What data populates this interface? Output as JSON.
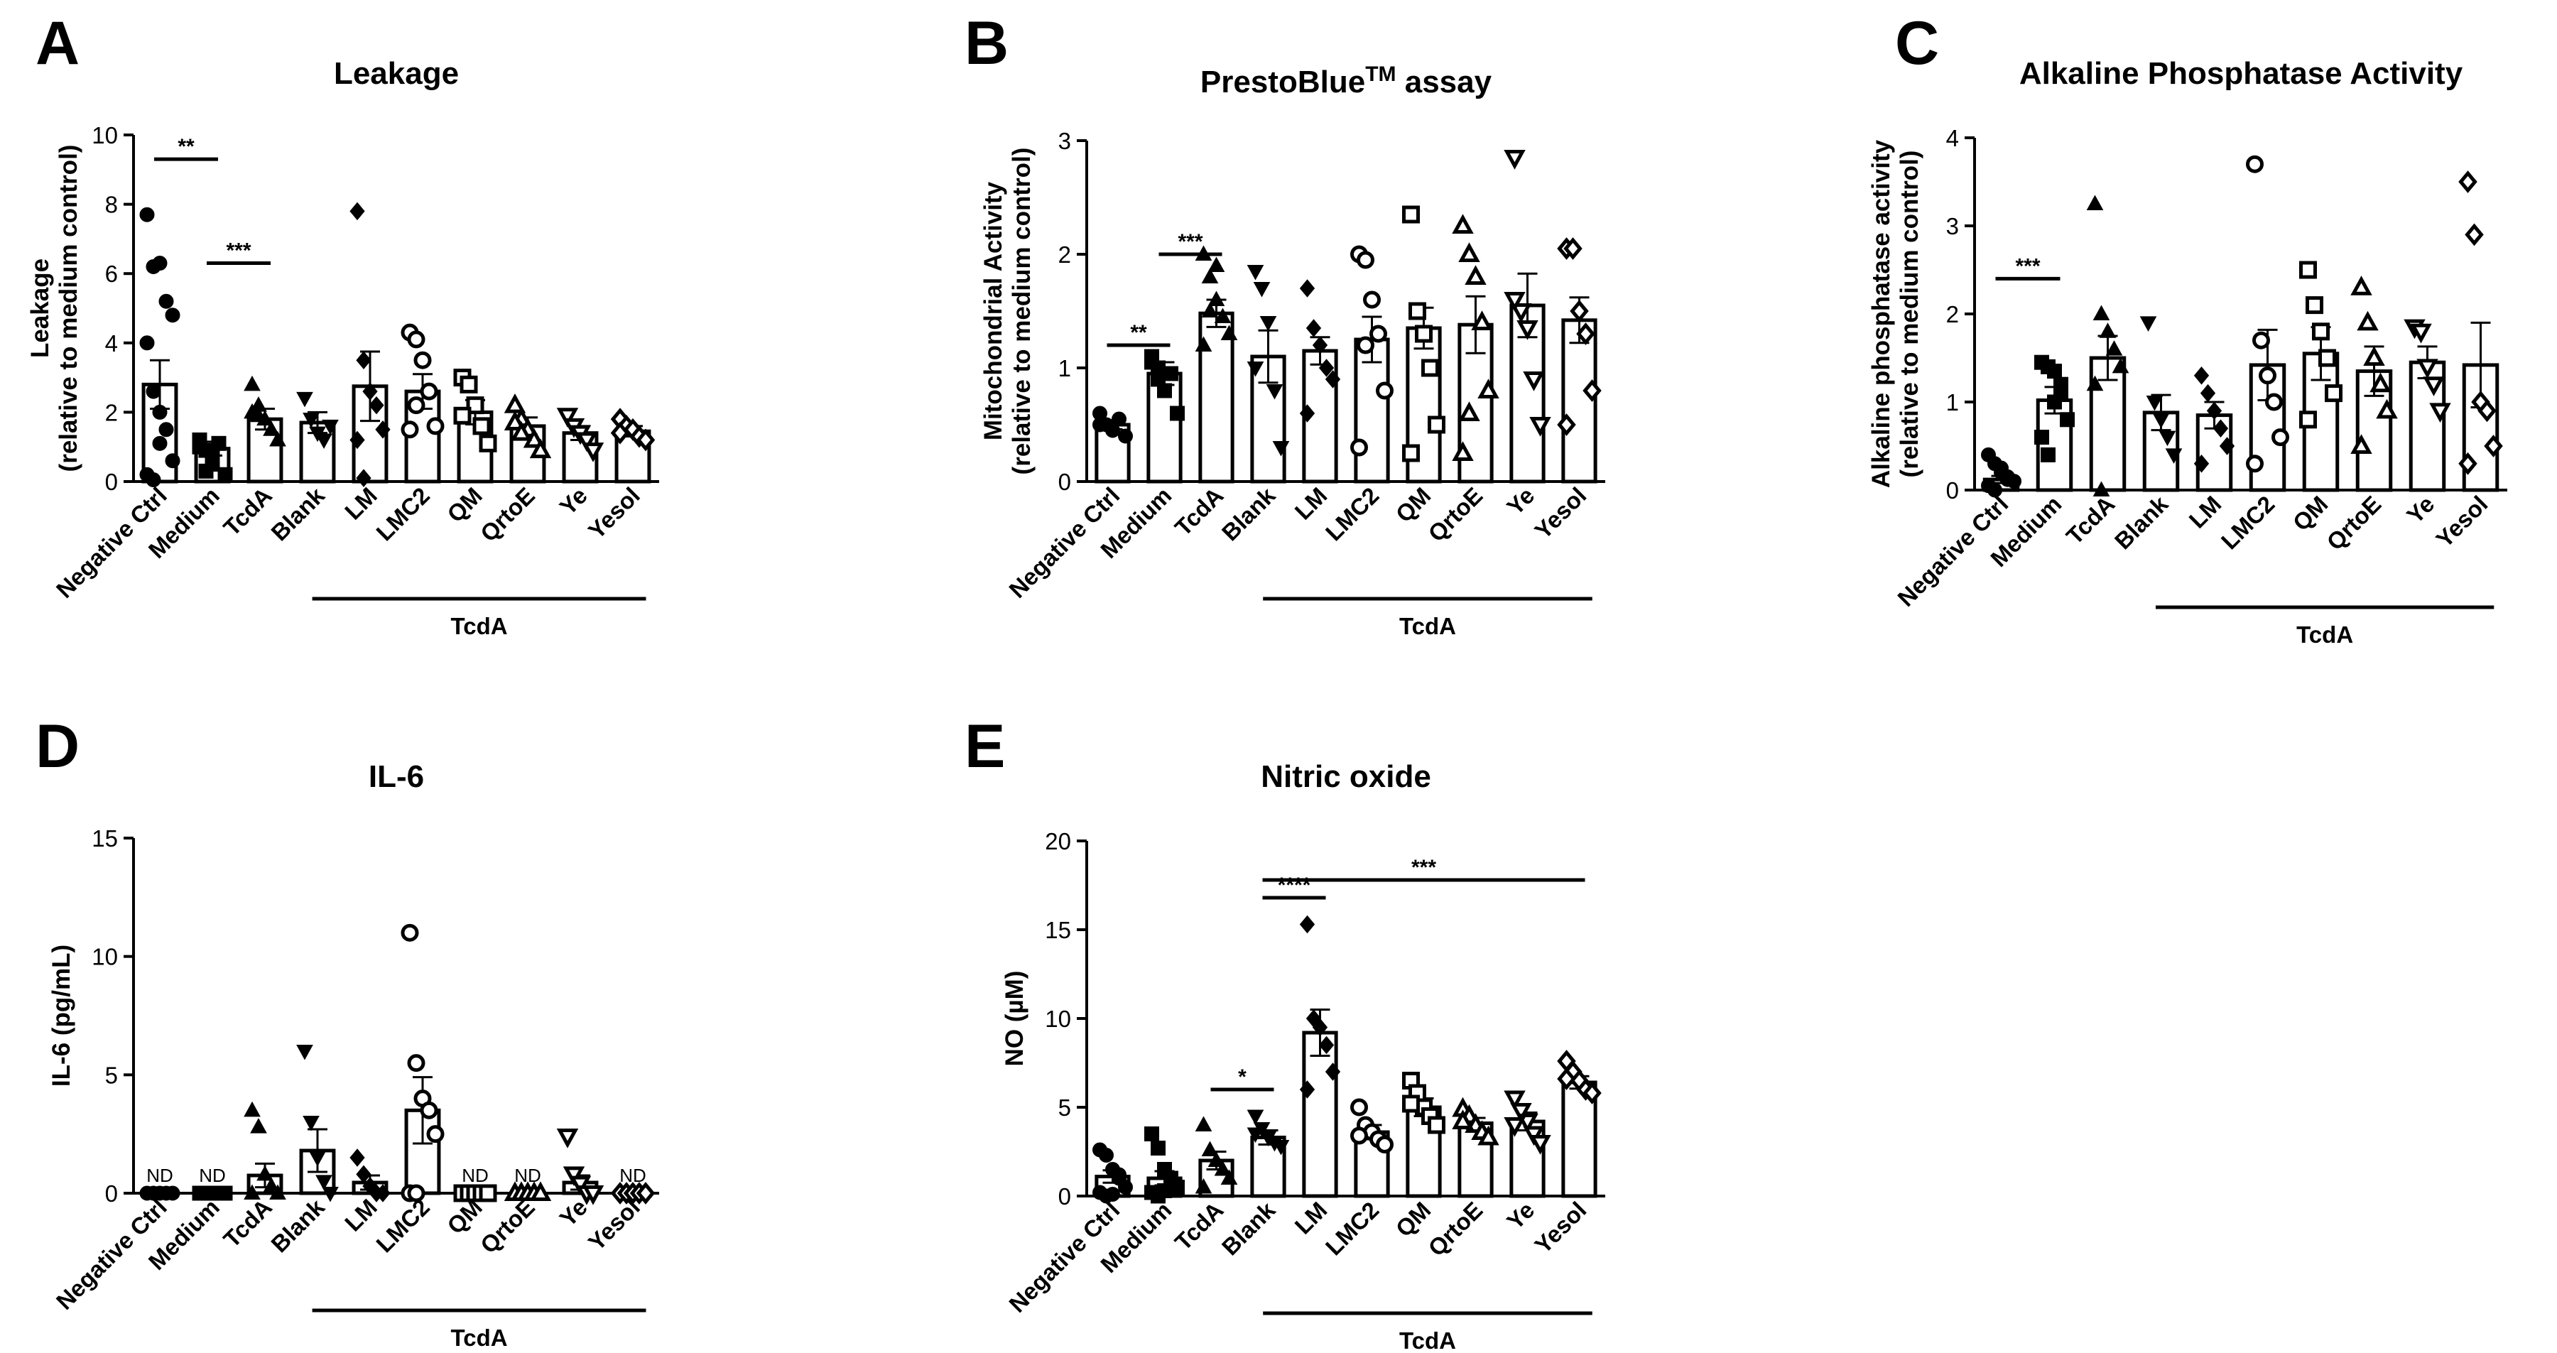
{
  "chart_data": [
    {
      "panel": "A",
      "type": "bar",
      "title": "Leakage",
      "ylabel": [
        "Leakage",
        "(relative to medium control)"
      ],
      "ylim": [
        0,
        10
      ],
      "yticks": [
        0,
        2,
        4,
        6,
        8,
        10
      ],
      "categories": [
        "Negative Ctrl",
        "Medium",
        "TcdA",
        "Blank",
        "LM",
        "LMC2",
        "QM",
        "QrtoE",
        "Ye",
        "Yesol"
      ],
      "markers": [
        "circle",
        "square",
        "triangle",
        "triangle-down",
        "diamond",
        "circle-open",
        "square-open",
        "triangle-open",
        "triangle-down-open",
        "diamond-open"
      ],
      "values": [
        2.8,
        0.95,
        1.8,
        1.7,
        2.75,
        2.6,
        2.0,
        1.6,
        1.4,
        1.45
      ],
      "errors": [
        0.7,
        0.2,
        0.3,
        0.3,
        1.0,
        0.5,
        0.35,
        0.25,
        0.2,
        0.15
      ],
      "points": [
        [
          7.7,
          6.2,
          6.3,
          5.2,
          4.8,
          4.0,
          2.6,
          2.0,
          1.5,
          0.6,
          0.2,
          0.05,
          1.1
        ],
        [
          1.0,
          0.9,
          0.5,
          1.1,
          0.2,
          1.2,
          0.3,
          0.8
        ],
        [
          2.8,
          2.2,
          1.8,
          1.5,
          1.2,
          2.0,
          1.9
        ],
        [
          2.4,
          1.8,
          1.4,
          1.2,
          1.6
        ],
        [
          7.8,
          3.5,
          2.6,
          2.2,
          1.5,
          1.2,
          0.1
        ],
        [
          4.3,
          4.1,
          3.5,
          2.6,
          1.6,
          1.5,
          2.2
        ],
        [
          3.0,
          2.8,
          2.2,
          1.6,
          1.1,
          1.9
        ],
        [
          2.2,
          1.8,
          1.5,
          1.2,
          0.9,
          1.7,
          1.4
        ],
        [
          1.9,
          1.6,
          1.4,
          1.2,
          0.9
        ],
        [
          1.8,
          1.6,
          1.5,
          1.3,
          1.2,
          1.4
        ]
      ],
      "significance": [
        {
          "from": 0,
          "to": 1,
          "label": "**",
          "y": 9.3
        },
        {
          "from": 1,
          "to": 2,
          "label": "***",
          "y": 6.3
        }
      ],
      "group": {
        "label": "TcdA",
        "from": 3,
        "to": 9
      }
    },
    {
      "panel": "B",
      "type": "bar",
      "title": "PrestoBlue",
      "title_sup": "TM",
      "title_after": " assay",
      "ylabel": [
        "Mitochondrial Activity",
        "(relative to medium control)"
      ],
      "ylim": [
        0,
        3
      ],
      "yticks": [
        0,
        1,
        2,
        3
      ],
      "categories": [
        "Negative Ctrl",
        "Medium",
        "TcdA",
        "Blank",
        "LM",
        "LMC2",
        "QM",
        "QrtoE",
        "Ye",
        "Yesol"
      ],
      "markers": [
        "circle",
        "square",
        "triangle",
        "triangle-down",
        "diamond",
        "circle-open",
        "square-open",
        "triangle-open",
        "triangle-down-open",
        "diamond-open"
      ],
      "values": [
        0.5,
        0.95,
        1.48,
        1.1,
        1.15,
        1.25,
        1.35,
        1.38,
        1.55,
        1.42
      ],
      "errors": [
        0.04,
        0.1,
        0.12,
        0.23,
        0.12,
        0.2,
        0.18,
        0.25,
        0.28,
        0.2
      ],
      "points": [
        [
          0.6,
          0.5,
          0.45,
          0.55,
          0.4,
          0.5
        ],
        [
          1.1,
          1.0,
          0.8,
          0.95,
          0.6,
          1.05,
          0.9
        ],
        [
          2.0,
          1.8,
          1.6,
          1.45,
          1.3,
          1.2,
          1.5,
          1.9
        ],
        [
          1.85,
          1.7,
          1.4,
          0.8,
          0.3,
          1.0
        ],
        [
          1.7,
          1.35,
          1.2,
          1.0,
          0.9,
          0.6
        ],
        [
          2.0,
          1.95,
          1.6,
          1.3,
          0.8,
          0.3,
          1.2
        ],
        [
          2.35,
          1.5,
          1.3,
          1.0,
          0.5,
          0.25
        ],
        [
          2.25,
          2.0,
          1.8,
          1.4,
          0.8,
          0.25,
          0.6
        ],
        [
          2.85,
          1.5,
          1.35,
          0.9,
          0.5,
          1.6
        ],
        [
          2.05,
          2.05,
          1.5,
          1.3,
          0.8,
          0.5
        ]
      ],
      "significance": [
        {
          "from": 0,
          "to": 1,
          "label": "**",
          "y": 1.2
        },
        {
          "from": 1,
          "to": 2,
          "label": "***",
          "y": 2.0
        }
      ],
      "group": {
        "label": "TcdA",
        "from": 3,
        "to": 9
      }
    },
    {
      "panel": "C",
      "type": "bar",
      "title": "Alkaline Phosphatase Activity",
      "ylabel": [
        "Alkaline phosphatase activity",
        "(relative to medium control)"
      ],
      "ylim": [
        0,
        4
      ],
      "yticks": [
        0,
        1,
        2,
        3,
        4
      ],
      "categories": [
        "Negative Ctrl",
        "Medium",
        "TcdA",
        "Blank",
        "LM",
        "LMC2",
        "QM",
        "QrtoE",
        "Ye",
        "Yesol"
      ],
      "markers": [
        "circle",
        "square",
        "triangle",
        "triangle-down",
        "diamond",
        "circle-open",
        "square-open",
        "triangle-open",
        "triangle-down-open",
        "diamond-open"
      ],
      "values": [
        0.12,
        1.02,
        1.5,
        0.88,
        0.85,
        1.42,
        1.55,
        1.35,
        1.45,
        1.42
      ],
      "errors": [
        0.04,
        0.15,
        0.25,
        0.2,
        0.15,
        0.4,
        0.3,
        0.28,
        0.18,
        0.48
      ],
      "points": [
        [
          0.4,
          0.3,
          0.2,
          0.15,
          0.1,
          0.05,
          0.0,
          0.25,
          0.12
        ],
        [
          1.45,
          1.4,
          1.35,
          1.2,
          0.8,
          0.6,
          0.4,
          1.0,
          1.1
        ],
        [
          3.25,
          2.0,
          1.8,
          1.6,
          1.4,
          1.2,
          0.0
        ],
        [
          1.9,
          1.0,
          0.8,
          0.6,
          0.4
        ],
        [
          1.3,
          1.1,
          0.9,
          0.7,
          0.5,
          0.3
        ],
        [
          3.7,
          1.7,
          1.3,
          1.0,
          0.6,
          0.3
        ],
        [
          2.5,
          2.1,
          1.8,
          1.5,
          1.1,
          0.8
        ],
        [
          2.3,
          1.9,
          1.5,
          1.2,
          0.9,
          0.5
        ],
        [
          1.85,
          1.8,
          1.4,
          1.2,
          0.9
        ],
        [
          3.5,
          2.9,
          1.0,
          0.9,
          0.5,
          0.3
        ]
      ],
      "significance": [
        {
          "from": 0,
          "to": 1,
          "label": "***",
          "y": 2.4
        }
      ],
      "group": {
        "label": "TcdA",
        "from": 3,
        "to": 9
      }
    },
    {
      "panel": "D",
      "type": "bar",
      "title": "IL-6",
      "ylabel": [
        "IL-6 (pg/mL)"
      ],
      "ylim": [
        0,
        15
      ],
      "yticks": [
        0,
        5,
        10,
        15
      ],
      "categories": [
        "Negative Ctrl",
        "Medium",
        "TcdA",
        "Blank",
        "LM",
        "LMC2",
        "QM",
        "QrtoE",
        "Ye",
        "Yesol"
      ],
      "markers": [
        "circle",
        "square",
        "triangle",
        "triangle-down",
        "diamond",
        "circle-open",
        "square-open",
        "triangle-open",
        "triangle-down-open",
        "diamond-open"
      ],
      "values": [
        0.02,
        0.02,
        0.75,
        1.8,
        0.45,
        3.5,
        0.02,
        0.02,
        0.45,
        0.02
      ],
      "errors": [
        0,
        0,
        0.5,
        0.9,
        0.3,
        1.4,
        0,
        0,
        0.3,
        0
      ],
      "points": [
        [
          0.0,
          0.0,
          0.0,
          0.0,
          0.0
        ],
        [
          0.0,
          0.0,
          0.0,
          0.0,
          0.0
        ],
        [
          3.5,
          2.8,
          0.8,
          0.3,
          0.0,
          0.0
        ],
        [
          6.0,
          3.0,
          1.5,
          0.5,
          0.0
        ],
        [
          1.5,
          0.8,
          0.3,
          0.0,
          0.0
        ],
        [
          11.0,
          5.5,
          4.0,
          3.5,
          2.5,
          0.0,
          0.0
        ],
        [
          0.0,
          0.0,
          0.0,
          0.0,
          0.0
        ],
        [
          0.0,
          0.0,
          0.0,
          0.0,
          0.0
        ],
        [
          2.4,
          0.8,
          0.4,
          0.0,
          0.0
        ],
        [
          0.0,
          0.0,
          0.0,
          0.0,
          0.0
        ]
      ],
      "nd": [
        true,
        true,
        false,
        false,
        false,
        false,
        true,
        true,
        false,
        true
      ],
      "nd_label": "ND",
      "significance": [],
      "group": {
        "label": "TcdA",
        "from": 3,
        "to": 9
      }
    },
    {
      "panel": "E",
      "type": "bar",
      "title": "Nitric oxide",
      "ylabel": [
        "NO (µM)"
      ],
      "ylim": [
        0,
        20
      ],
      "yticks": [
        0,
        5,
        10,
        15,
        20
      ],
      "categories": [
        "Negative Ctrl",
        "Medium",
        "TcdA",
        "Blank",
        "LM",
        "LMC2",
        "QM",
        "QrtoE",
        "Ye",
        "Yesol"
      ],
      "markers": [
        "circle",
        "square",
        "triangle",
        "triangle-down",
        "diamond",
        "circle-open",
        "square-open",
        "triangle-open",
        "triangle-down-open",
        "diamond-open"
      ],
      "values": [
        1.1,
        1.0,
        2.0,
        3.3,
        9.2,
        3.6,
        5.0,
        4.1,
        4.2,
        6.4
      ],
      "errors": [
        0.35,
        0.4,
        0.5,
        0.4,
        1.3,
        0.4,
        0.5,
        0.3,
        0.5,
        0.35
      ],
      "points": [
        [
          2.6,
          2.3,
          1.5,
          1.0,
          0.5,
          0.2,
          0.0,
          0.1,
          1.2
        ],
        [
          3.5,
          2.7,
          1.5,
          1.0,
          0.5,
          0.2,
          0.0,
          0.3
        ],
        [
          4.0,
          2.6,
          2.0,
          1.5,
          1.0,
          0.5
        ],
        [
          4.5,
          3.8,
          3.3,
          3.0,
          2.8,
          3.5
        ],
        [
          15.3,
          10.0,
          9.5,
          8.5,
          7.0,
          6.0
        ],
        [
          5.0,
          4.0,
          3.6,
          3.2,
          2.9,
          3.4
        ],
        [
          6.5,
          5.8,
          5.0,
          4.5,
          4.0,
          5.2
        ],
        [
          4.9,
          4.5,
          4.0,
          3.6,
          3.3,
          4.2
        ],
        [
          5.5,
          4.8,
          4.2,
          3.5,
          3.0,
          4.0
        ],
        [
          7.6,
          7.0,
          6.5,
          6.0,
          5.8,
          6.6
        ]
      ],
      "significance": [
        {
          "from": 2,
          "to": 3,
          "label": "*",
          "y": 6.0
        },
        {
          "from": 3,
          "to": 4,
          "label": "****",
          "y": 16.8
        },
        {
          "from": 3,
          "to": 9,
          "label": "***",
          "y": 17.8
        }
      ],
      "group": {
        "label": "TcdA",
        "from": 3,
        "to": 9
      }
    }
  ]
}
